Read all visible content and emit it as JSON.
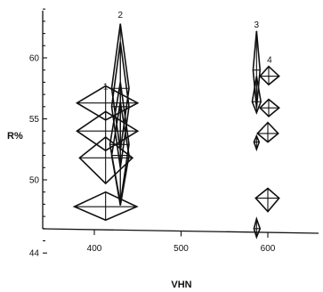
{
  "chart_data": {
    "type": "scatter",
    "title": "",
    "xlabel": "VHN",
    "ylabel": "R%",
    "xlim": [
      365,
      650
    ],
    "ylim": [
      44,
      64
    ],
    "grid": false,
    "x_ticks": [
      400,
      500,
      600
    ],
    "y_ticks": [
      44,
      50,
      55,
      60
    ],
    "annotations": [
      {
        "text": "1",
        "x": 413,
        "y": 57.4
      },
      {
        "text": "2",
        "x": 430,
        "y": 63.3
      },
      {
        "text": "3",
        "x": 587,
        "y": 62.5
      },
      {
        "text": "4",
        "x": 602,
        "y": 59.6
      }
    ],
    "points": [
      {
        "x": 413,
        "y": 56.3,
        "x_range": [
          380,
          450
        ],
        "y_range": [
          54.9,
          57.7
        ]
      },
      {
        "x": 413,
        "y": 54.0,
        "x_range": [
          380,
          450
        ],
        "y_range": [
          52.4,
          55.6
        ]
      },
      {
        "x": 413,
        "y": 51.8,
        "x_range": [
          383,
          444
        ],
        "y_range": [
          49.7,
          53.5
        ]
      },
      {
        "x": 413,
        "y": 47.8,
        "x_range": [
          377,
          449
        ],
        "y_range": [
          46.7,
          49.0
        ]
      },
      {
        "x": 430,
        "y": 57.5,
        "x_range": [
          420,
          440
        ],
        "y_range": [
          52.4,
          62.8
        ]
      },
      {
        "x": 430,
        "y": 56.0,
        "x_range": [
          420,
          440
        ],
        "y_range": [
          51.0,
          61.3
        ]
      },
      {
        "x": 430,
        "y": 52.0,
        "x_range": [
          420,
          440
        ],
        "y_range": [
          47.9,
          56.4
        ]
      },
      {
        "x": 430,
        "y": 52.9,
        "x_range": [
          418,
          440
        ],
        "y_range": [
          48.1,
          58.0
        ]
      },
      {
        "x": 587,
        "y": 59.0,
        "x_range": [
          583,
          591
        ],
        "y_range": [
          55.9,
          62.2
        ]
      },
      {
        "x": 587,
        "y": 56.4,
        "x_range": [
          582,
          592
        ],
        "y_range": [
          55.5,
          58.5
        ]
      },
      {
        "x": 587,
        "y": 53.1,
        "x_range": [
          584,
          590
        ],
        "y_range": [
          52.5,
          53.6
        ]
      },
      {
        "x": 587,
        "y": 46.0,
        "x_range": [
          584,
          591
        ],
        "y_range": [
          45.3,
          46.8
        ]
      },
      {
        "x": 601,
        "y": 58.5,
        "x_range": [
          591,
          613
        ],
        "y_range": [
          57.8,
          59.3
        ]
      },
      {
        "x": 601,
        "y": 55.9,
        "x_range": [
          591,
          613
        ],
        "y_range": [
          55.2,
          56.6
        ]
      },
      {
        "x": 600,
        "y": 53.8,
        "x_range": [
          588,
          612
        ],
        "y_range": [
          53.1,
          54.7
        ]
      },
      {
        "x": 600,
        "y": 48.5,
        "x_range": [
          586,
          613
        ],
        "y_range": [
          47.4,
          49.3
        ]
      }
    ]
  }
}
